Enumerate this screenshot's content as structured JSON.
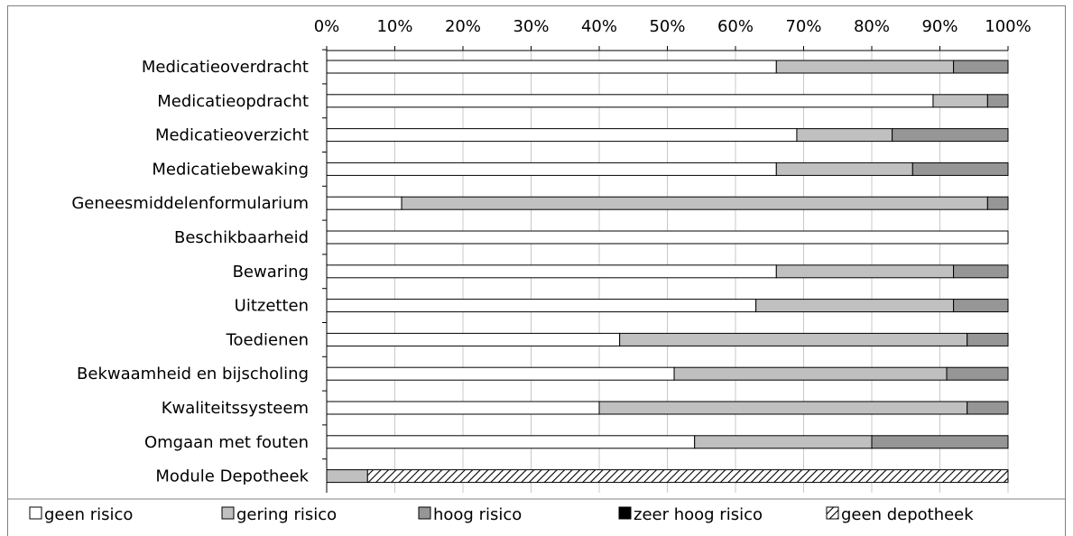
{
  "chart_data": {
    "type": "bar",
    "orientation": "horizontal",
    "stacked": "percent",
    "categories": [
      "Medicatieoverdracht",
      "Medicatieopdracht",
      "Medicatieoverzicht",
      "Medicatiebewaking",
      "Geneesmiddelenformularium",
      "Beschikbaarheid",
      "Bewaring",
      "Uitzetten",
      "Toedienen",
      "Bekwaamheid en bijscholing",
      "Kwaliteitssysteem",
      "Omgaan met fouten",
      "Module Depotheek"
    ],
    "series": [
      {
        "name": "geen risico",
        "color": "#ffffff",
        "pattern": "none",
        "values": [
          66,
          89,
          69,
          66,
          11,
          100,
          66,
          63,
          43,
          51,
          40,
          54,
          0
        ]
      },
      {
        "name": "gering risico",
        "color": "#c0c0c0",
        "pattern": "none",
        "values": [
          26,
          8,
          14,
          20,
          86,
          0,
          26,
          29,
          51,
          40,
          54,
          26,
          6
        ]
      },
      {
        "name": "hoog risico",
        "color": "#969696",
        "pattern": "none",
        "values": [
          8,
          3,
          17,
          14,
          3,
          0,
          8,
          8,
          6,
          9,
          6,
          20,
          0
        ]
      },
      {
        "name": "zeer hoog risico",
        "color": "#000000",
        "pattern": "none",
        "values": [
          0,
          0,
          0,
          0,
          0,
          0,
          0,
          0,
          0,
          0,
          0,
          0,
          0
        ]
      },
      {
        "name": "geen depotheek",
        "color": "#ffffff",
        "pattern": "diagonal-hatch",
        "values": [
          0,
          0,
          0,
          0,
          0,
          0,
          0,
          0,
          0,
          0,
          0,
          0,
          94
        ]
      }
    ],
    "xlim": [
      0,
      100
    ],
    "x_ticks": [
      "0%",
      "10%",
      "20%",
      "30%",
      "40%",
      "50%",
      "60%",
      "70%",
      "80%",
      "90%",
      "100%"
    ],
    "x_axis_position": "top",
    "grid": true,
    "legend_position": "bottom",
    "title": "",
    "xlabel": "",
    "ylabel": ""
  }
}
